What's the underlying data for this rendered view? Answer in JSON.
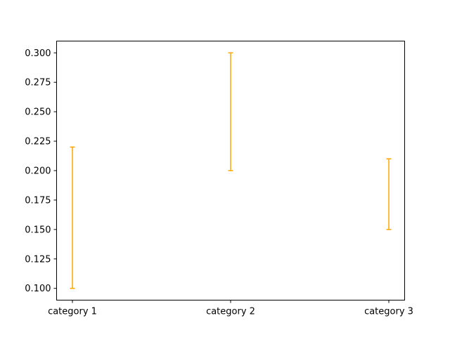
{
  "chart_data": {
    "type": "errorbar",
    "categories": [
      "category 1",
      "category 2",
      "category 3"
    ],
    "ranges": [
      {
        "low": 0.1,
        "high": 0.22
      },
      {
        "low": 0.2,
        "high": 0.3
      },
      {
        "low": 0.15,
        "high": 0.21
      }
    ],
    "ylim": [
      0.09,
      0.31
    ],
    "yticks": [
      "0.100",
      "0.125",
      "0.150",
      "0.175",
      "0.200",
      "0.225",
      "0.250",
      "0.275",
      "0.300"
    ],
    "title": "",
    "xlabel": "",
    "ylabel": "",
    "grid": false,
    "color": "#ffa500"
  }
}
